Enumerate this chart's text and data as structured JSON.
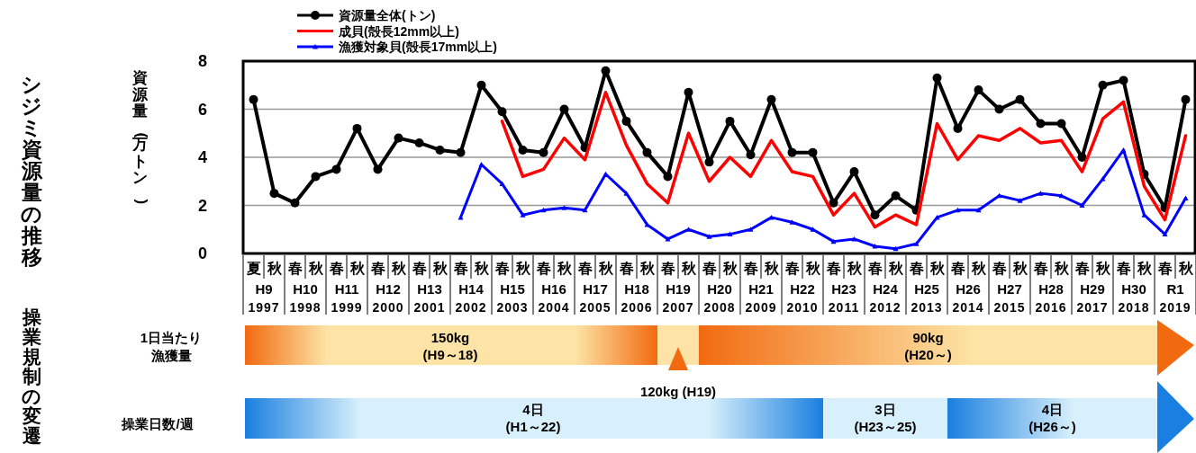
{
  "chart_data": {
    "type": "line",
    "title": "シジミ資源量の推移",
    "ylabel": "資源量(万トン)",
    "categories": [
      "夏",
      "秋",
      "春",
      "秋",
      "春",
      "秋",
      "春",
      "秋",
      "春",
      "秋",
      "春",
      "秋",
      "春",
      "秋",
      "春",
      "秋",
      "春",
      "秋",
      "春",
      "秋",
      "春",
      "秋",
      "春",
      "秋",
      "春",
      "秋",
      "春",
      "秋",
      "春",
      "秋",
      "春",
      "秋",
      "春",
      "秋",
      "春",
      "秋",
      "春",
      "秋",
      "春",
      "秋",
      "春",
      "秋",
      "春",
      "秋",
      "春",
      "秋"
    ],
    "series": [
      {
        "name": "資源量全体(トン)",
        "color": "#000000",
        "marker": "circle",
        "values": [
          6.4,
          2.5,
          2.1,
          3.2,
          3.5,
          5.2,
          3.5,
          4.8,
          4.6,
          4.3,
          4.2,
          7.0,
          5.9,
          4.3,
          4.2,
          6.0,
          4.4,
          7.6,
          5.5,
          4.2,
          3.2,
          6.7,
          3.8,
          5.5,
          4.1,
          6.4,
          4.2,
          4.2,
          2.1,
          3.4,
          1.6,
          2.4,
          1.8,
          7.3,
          5.2,
          6.8,
          6.0,
          6.4,
          5.4,
          5.4,
          4.0,
          7.0,
          7.2,
          3.3,
          1.9,
          6.4
        ]
      },
      {
        "name": "成貝(殻長12mm以上)",
        "color": "#ff0000",
        "marker": "none",
        "values": [
          null,
          null,
          null,
          null,
          null,
          null,
          null,
          null,
          null,
          null,
          null,
          null,
          5.5,
          3.2,
          3.5,
          4.8,
          3.9,
          6.7,
          4.5,
          2.9,
          2.1,
          5.0,
          3.0,
          4.0,
          3.2,
          4.7,
          3.4,
          3.2,
          1.6,
          2.5,
          1.1,
          1.6,
          1.2,
          5.4,
          3.9,
          4.9,
          4.7,
          5.2,
          4.6,
          4.7,
          3.4,
          5.6,
          6.3,
          2.8,
          1.4,
          4.9
        ]
      },
      {
        "name": "漁獲対象貝(殻長17mm以上)",
        "color": "#0000ff",
        "marker": "triangle",
        "values": [
          null,
          null,
          null,
          null,
          null,
          null,
          null,
          null,
          null,
          null,
          1.5,
          3.7,
          2.9,
          1.6,
          1.8,
          1.9,
          1.8,
          3.3,
          2.5,
          1.2,
          0.6,
          1.0,
          0.7,
          0.8,
          1.0,
          1.5,
          1.3,
          1.0,
          0.5,
          0.6,
          0.3,
          0.2,
          0.4,
          1.5,
          1.8,
          1.8,
          2.4,
          2.2,
          2.5,
          2.4,
          2.0,
          3.1,
          4.3,
          1.6,
          0.8,
          2.3
        ]
      }
    ],
    "ylim": [
      0,
      8
    ],
    "yticks": [
      0,
      2,
      4,
      6,
      8
    ],
    "grid": "y",
    "legend": "top",
    "annotations": [
      "操業規制の変遷",
      "1日当たり",
      "漁獲量",
      "150kg\n(H9～18)",
      "120kg (H19)",
      "90kg\n(H20～)",
      "操業日数/週",
      "4日\n(H1～22)",
      "3日\n(H23～25)",
      "4日\n(H26～)",
      "H9",
      "1997",
      "H10",
      "1998",
      "H11",
      "1999",
      "H12",
      "2000",
      "H13",
      "2001",
      "H14",
      "2002",
      "H15",
      "2003",
      "H16",
      "2004",
      "H17",
      "2005",
      "H18",
      "2006",
      "H19",
      "2007",
      "H20",
      "2008",
      "H21",
      "2009",
      "H22",
      "2010",
      "H23",
      "2011",
      "H24",
      "2012",
      "H25",
      "2013",
      "H26",
      "2014",
      "H27",
      "2015",
      "H28",
      "2016",
      "H29",
      "2017",
      "H30",
      "2018",
      "R1",
      "2019"
    ]
  }
}
